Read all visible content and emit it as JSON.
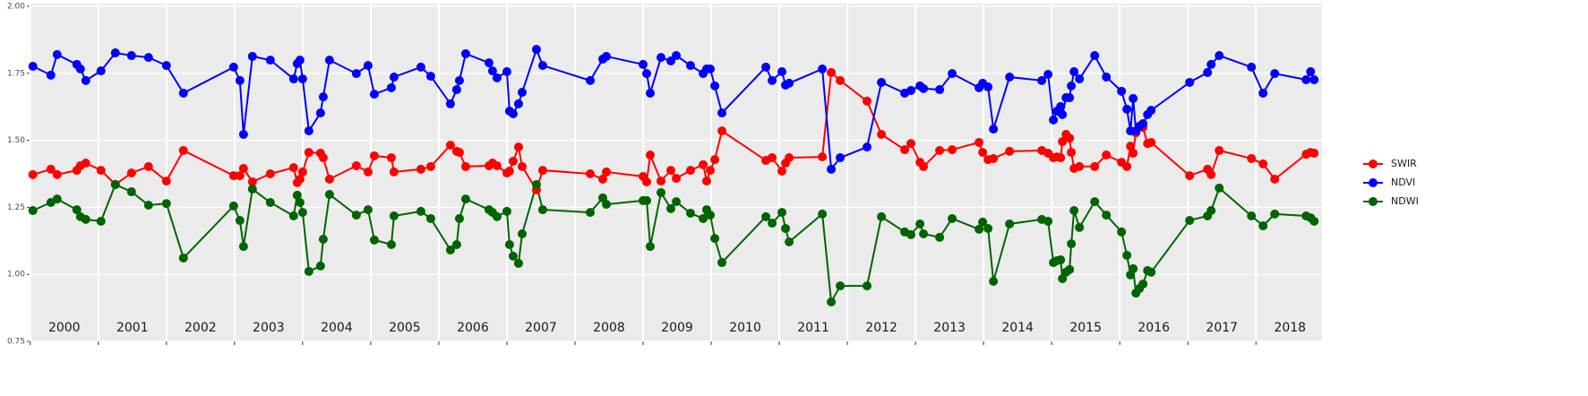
{
  "chart_data": {
    "type": "line",
    "x": [
      2000.039,
      2000.303,
      2000.395,
      2000.684,
      2000.737,
      2000.816,
      2001.039,
      2001.25,
      2001.487,
      2001.737,
      2002.0,
      2002.25,
      2002.987,
      2003.079,
      2003.132,
      2003.263,
      2003.526,
      2003.868,
      2003.921,
      2003.961,
      2004.0,
      2004.092,
      2004.263,
      2004.303,
      2004.395,
      2004.789,
      2004.961,
      2005.053,
      2005.303,
      2005.342,
      2005.737,
      2005.882,
      2006.171,
      2006.263,
      2006.303,
      2006.395,
      2006.737,
      2006.789,
      2006.855,
      2007.0,
      2007.039,
      2007.092,
      2007.171,
      2007.224,
      2007.434,
      2007.526,
      2008.224,
      2008.408,
      2008.461,
      2009.0,
      2009.053,
      2009.105,
      2009.263,
      2009.408,
      2009.487,
      2009.697,
      2009.882,
      2009.934,
      2009.987,
      2010.053,
      2010.158,
      2010.803,
      2010.895,
      2011.039,
      2011.092,
      2011.145,
      2011.632,
      2011.763,
      2011.895,
      2012.289,
      2012.5,
      2012.842,
      2012.934,
      2013.066,
      2013.118,
      2013.355,
      2013.539,
      2013.934,
      2013.987,
      2014.066,
      2014.145,
      2014.382,
      2014.855,
      2014.947,
      2015.026,
      2015.079,
      2015.132,
      2015.158,
      2015.211,
      2015.263,
      2015.289,
      2015.329,
      2015.408,
      2015.632,
      2015.803,
      2016.026,
      2016.105,
      2016.158,
      2016.197,
      2016.237,
      2016.289,
      2016.342,
      2016.408,
      2016.461,
      2017.026,
      2017.289,
      2017.342,
      2017.461,
      2017.934,
      2018.105,
      2018.276,
      2018.737,
      2018.803,
      2018.855
    ],
    "series": [
      {
        "name": "SWIR",
        "color": "#ff0000",
        "values": [
          1.372,
          1.392,
          1.372,
          1.388,
          1.405,
          1.415,
          1.388,
          1.335,
          1.378,
          1.402,
          1.348,
          1.462,
          1.368,
          1.368,
          1.395,
          1.345,
          1.375,
          1.398,
          1.342,
          1.355,
          1.382,
          1.455,
          1.452,
          1.435,
          1.355,
          1.405,
          1.382,
          1.442,
          1.435,
          1.382,
          1.392,
          1.402,
          1.482,
          1.459,
          1.455,
          1.402,
          1.405,
          1.415,
          1.405,
          1.378,
          1.385,
          1.422,
          1.475,
          1.402,
          1.315,
          1.388,
          1.375,
          1.355,
          1.382,
          1.365,
          1.345,
          1.445,
          1.348,
          1.388,
          1.358,
          1.388,
          1.409,
          1.348,
          1.388,
          1.428,
          1.535,
          1.425,
          1.435,
          1.385,
          1.415,
          1.435,
          1.438,
          1.753,
          1.723,
          1.646,
          1.522,
          1.465,
          1.488,
          1.418,
          1.402,
          1.462,
          1.465,
          1.492,
          1.455,
          1.428,
          1.432,
          1.459,
          1.462,
          1.452,
          1.435,
          1.438,
          1.435,
          1.495,
          1.522,
          1.508,
          1.455,
          1.395,
          1.402,
          1.402,
          1.445,
          1.418,
          1.402,
          1.478,
          1.452,
          1.528,
          1.552,
          1.548,
          1.488,
          1.492,
          1.368,
          1.392,
          1.372,
          1.462,
          1.432,
          1.412,
          1.355,
          1.448,
          1.455,
          1.452
        ]
      },
      {
        "name": "NDVI",
        "color": "#0000ff",
        "values": [
          1.776,
          1.743,
          1.82,
          1.783,
          1.766,
          1.723,
          1.759,
          1.826,
          1.816,
          1.809,
          1.779,
          1.676,
          1.773,
          1.723,
          1.522,
          1.813,
          1.799,
          1.729,
          1.786,
          1.799,
          1.729,
          1.535,
          1.602,
          1.662,
          1.799,
          1.749,
          1.779,
          1.672,
          1.696,
          1.736,
          1.773,
          1.739,
          1.636,
          1.689,
          1.723,
          1.823,
          1.789,
          1.759,
          1.733,
          1.756,
          1.609,
          1.599,
          1.636,
          1.679,
          1.839,
          1.779,
          1.723,
          1.803,
          1.813,
          1.783,
          1.749,
          1.676,
          1.809,
          1.796,
          1.816,
          1.779,
          1.749,
          1.766,
          1.766,
          1.703,
          1.602,
          1.773,
          1.723,
          1.756,
          1.706,
          1.713,
          1.766,
          1.392,
          1.435,
          1.475,
          1.716,
          1.676,
          1.686,
          1.703,
          1.693,
          1.689,
          1.749,
          1.696,
          1.713,
          1.699,
          1.542,
          1.736,
          1.723,
          1.746,
          1.576,
          1.609,
          1.626,
          1.596,
          1.659,
          1.659,
          1.703,
          1.756,
          1.729,
          1.816,
          1.736,
          1.683,
          1.616,
          1.535,
          1.656,
          1.535,
          1.552,
          1.562,
          1.596,
          1.612,
          1.716,
          1.753,
          1.783,
          1.816,
          1.773,
          1.676,
          1.749,
          1.726,
          1.756,
          1.726
        ]
      },
      {
        "name": "NDWI",
        "color": "#006400",
        "values": [
          1.238,
          1.268,
          1.281,
          1.241,
          1.215,
          1.205,
          1.198,
          1.335,
          1.308,
          1.258,
          1.264,
          1.061,
          1.255,
          1.201,
          1.104,
          1.318,
          1.268,
          1.218,
          1.295,
          1.268,
          1.231,
          1.011,
          1.031,
          1.131,
          1.298,
          1.221,
          1.241,
          1.128,
          1.111,
          1.218,
          1.235,
          1.208,
          1.091,
          1.111,
          1.208,
          1.281,
          1.241,
          1.231,
          1.215,
          1.235,
          1.111,
          1.068,
          1.041,
          1.151,
          1.335,
          1.241,
          1.231,
          1.285,
          1.261,
          1.275,
          1.275,
          1.104,
          1.305,
          1.245,
          1.271,
          1.228,
          1.208,
          1.241,
          1.221,
          1.134,
          1.044,
          1.215,
          1.191,
          1.231,
          1.171,
          1.121,
          1.225,
          0.897,
          0.957,
          0.957,
          1.215,
          1.158,
          1.148,
          1.188,
          1.151,
          1.138,
          1.208,
          1.168,
          1.195,
          1.171,
          0.974,
          1.188,
          1.205,
          1.198,
          1.044,
          1.051,
          1.054,
          0.984,
          1.008,
          1.018,
          1.114,
          1.238,
          1.175,
          1.271,
          1.221,
          1.158,
          1.071,
          0.998,
          1.021,
          0.93,
          0.947,
          0.964,
          1.014,
          1.008,
          1.201,
          1.218,
          1.238,
          1.322,
          1.218,
          1.181,
          1.225,
          1.218,
          1.211,
          1.198
        ]
      }
    ],
    "xlim": [
      1999.99,
      2018.97
    ],
    "xticks": [
      2000,
      2001,
      2002,
      2003,
      2004,
      2005,
      2006,
      2007,
      2008,
      2009,
      2010,
      2011,
      2012,
      2013,
      2014,
      2015,
      2016,
      2017,
      2018
    ],
    "ylim": [
      0.75,
      2.0
    ],
    "yticks": [
      {
        "value": 0.75,
        "label": "0.75"
      },
      {
        "value": 1.0,
        "label": "1.00"
      },
      {
        "value": 1.25,
        "label": "1.25"
      },
      {
        "value": 1.5,
        "label": "1.50"
      },
      {
        "value": 1.75,
        "label": "1.75"
      },
      {
        "value": 2.0,
        "label": "2.00"
      }
    ],
    "grid": true,
    "legend": "right"
  }
}
